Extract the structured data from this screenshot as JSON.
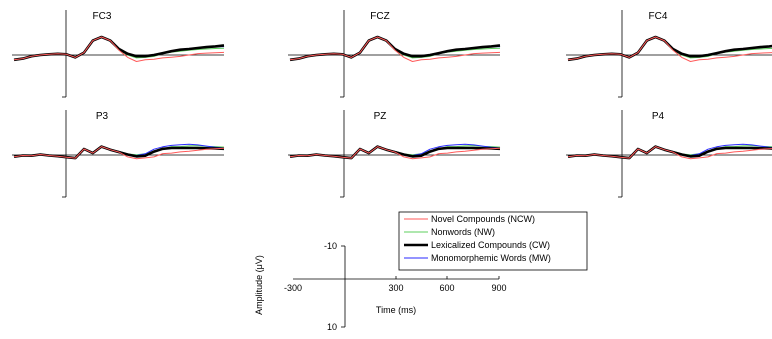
{
  "chart_data": {
    "type": "line",
    "x_unit": "ms",
    "x_range": [
      -300,
      900
    ],
    "y_range": [
      -10,
      10
    ],
    "y_inverted": true,
    "x": [
      -300,
      -250,
      -200,
      -150,
      -100,
      -50,
      0,
      50,
      100,
      150,
      200,
      250,
      300,
      350,
      400,
      450,
      500,
      550,
      600,
      650,
      700,
      750,
      800,
      850,
      900
    ],
    "series_styles": {
      "NCW": {
        "color": "#ff5a5a",
        "width": 1.0
      },
      "NW": {
        "color": "#5ccf5c",
        "width": 1.0
      },
      "CW": {
        "color": "#000000",
        "width": 2.6
      },
      "MW": {
        "color": "#2a2aff",
        "width": 1.0
      }
    },
    "panels": [
      {
        "title": "FC3",
        "series": {
          "NCW": [
            -2,
            -1.5,
            -0.5,
            0,
            0.3,
            0.5,
            0.3,
            -1,
            1,
            6,
            7.5,
            6,
            2,
            -1,
            -2.7,
            -2,
            -1.8,
            -1.2,
            -0.9,
            -0.6,
            0,
            0.6,
            0.8,
            0.9,
            1.1
          ],
          "NW": [
            -2,
            -1.5,
            -0.5,
            0,
            0.3,
            0.5,
            0.3,
            -1,
            1,
            6,
            7.5,
            6,
            2,
            0,
            -1.2,
            -1.0,
            -0.6,
            0.6,
            1.2,
            1.6,
            2.0,
            2.3,
            2.5,
            2.7,
            2.8
          ],
          "CW": [
            -2,
            -1.5,
            -0.5,
            0,
            0.3,
            0.5,
            0.3,
            -1,
            1,
            6,
            7.5,
            6,
            2.5,
            0.5,
            -0.5,
            -0.5,
            0,
            0.8,
            1.6,
            2.2,
            2.5,
            2.9,
            3.3,
            3.6,
            4.0
          ],
          "MW": [
            -2,
            -1.5,
            -0.5,
            0,
            0.3,
            0.5,
            0.3,
            -1,
            1,
            6,
            7.5,
            6,
            2.3,
            0.3,
            -0.7,
            -0.6,
            -0.1,
            0.7,
            1.8,
            2.4,
            2.7,
            3.0,
            3.2,
            3.4,
            3.5
          ]
        }
      },
      {
        "title": "FCZ",
        "series": {
          "NCW": [
            -2,
            -1.5,
            -0.5,
            0,
            0.3,
            0.5,
            0.3,
            -1,
            1,
            6,
            7.5,
            6,
            2,
            -1,
            -2.7,
            -2,
            -1.8,
            -1.2,
            -0.9,
            -0.6,
            0,
            0.6,
            0.8,
            0.9,
            1.1
          ],
          "NW": [
            -2,
            -1.5,
            -0.5,
            0,
            0.3,
            0.5,
            0.3,
            -1,
            1,
            6,
            7.5,
            6,
            2,
            0,
            -1.2,
            -1.0,
            -0.6,
            0.6,
            1.2,
            1.6,
            2.0,
            2.3,
            2.5,
            2.7,
            2.8
          ],
          "CW": [
            -2,
            -1.5,
            -0.5,
            0,
            0.3,
            0.5,
            0.3,
            -1,
            1,
            6,
            7.5,
            6,
            2.5,
            0.5,
            -0.5,
            -0.5,
            0,
            0.8,
            1.6,
            2.2,
            2.5,
            2.9,
            3.3,
            3.6,
            4.0
          ],
          "MW": [
            -2,
            -1.5,
            -0.5,
            0,
            0.3,
            0.5,
            0.3,
            -1,
            1,
            6,
            7.5,
            6,
            2.3,
            0.3,
            -0.7,
            -0.6,
            -0.1,
            0.7,
            1.8,
            2.4,
            2.7,
            3.0,
            3.2,
            3.4,
            3.5
          ]
        }
      },
      {
        "title": "FC4",
        "series": {
          "NCW": [
            -2,
            -1.5,
            -0.5,
            0,
            0.3,
            0.5,
            0.3,
            -1,
            1,
            6,
            7.5,
            6,
            2,
            -1,
            -2.7,
            -2,
            -1.8,
            -1.2,
            -0.9,
            -0.6,
            0,
            0.6,
            0.8,
            0.9,
            1.1
          ],
          "NW": [
            -2,
            -1.5,
            -0.5,
            0,
            0.3,
            0.5,
            0.3,
            -1,
            1,
            6,
            7.5,
            6,
            2,
            0,
            -1.2,
            -1.0,
            -0.6,
            0.6,
            1.2,
            1.6,
            2.0,
            2.3,
            2.5,
            2.7,
            2.8
          ],
          "CW": [
            -2,
            -1.5,
            -0.5,
            0,
            0.3,
            0.5,
            0.3,
            -1,
            1,
            6,
            7.5,
            6,
            2.5,
            0.5,
            -0.5,
            -0.5,
            0,
            0.8,
            1.6,
            2.2,
            2.5,
            2.9,
            3.3,
            3.6,
            4.0
          ],
          "MW": [
            -2,
            -1.5,
            -0.5,
            0,
            0.3,
            0.5,
            0.3,
            -1,
            1,
            6,
            7.5,
            6,
            2.3,
            0.3,
            -0.7,
            -0.6,
            -0.1,
            0.7,
            1.8,
            2.4,
            2.7,
            3.0,
            3.2,
            3.4,
            3.5
          ]
        }
      },
      {
        "title": "P3",
        "series": {
          "NCW": [
            -0.7,
            -0.2,
            -0.3,
            0.2,
            -0.2,
            -0.5,
            -0.9,
            -1.3,
            2.5,
            0.8,
            3.5,
            2.2,
            1.2,
            -0.8,
            -1.6,
            -1.2,
            -0.8,
            0.6,
            0.8,
            1.3,
            1.6,
            2.0,
            2.4,
            2.6,
            2.8
          ],
          "NW": [
            -0.7,
            -0.2,
            -0.3,
            0.2,
            -0.2,
            -0.5,
            -0.9,
            -1.3,
            2.5,
            0.8,
            3.5,
            2.2,
            1.5,
            0.4,
            0.1,
            0.5,
            1.6,
            2.6,
            3.5,
            3.5,
            3.8,
            3.9,
            3.6,
            3.5,
            3.3
          ],
          "CW": [
            -0.7,
            -0.2,
            -0.3,
            0.2,
            -0.2,
            -0.5,
            -0.9,
            -1.3,
            2.5,
            0.8,
            3.5,
            2.2,
            1.2,
            0.2,
            -0.6,
            -0.3,
            1.4,
            2.6,
            2.9,
            2.9,
            2.9,
            2.9,
            2.8,
            2.7,
            2.6
          ],
          "MW": [
            -0.7,
            -0.2,
            -0.3,
            0.2,
            -0.2,
            -0.5,
            -0.9,
            -1.3,
            2.5,
            0.8,
            3.5,
            2.2,
            1.5,
            0.3,
            -0.2,
            0.5,
            2.4,
            3.4,
            4.0,
            4.3,
            4.5,
            4.2,
            3.7,
            3.2,
            2.9
          ]
        }
      },
      {
        "title": "PZ",
        "series": {
          "NCW": [
            -0.7,
            -0.2,
            -0.3,
            0.2,
            -0.2,
            -0.5,
            -0.9,
            -1.3,
            2.5,
            0.8,
            3.5,
            2.2,
            1.2,
            -0.8,
            -1.6,
            -1.2,
            -0.8,
            0.6,
            0.8,
            1.3,
            1.6,
            2.0,
            2.4,
            2.6,
            2.8
          ],
          "NW": [
            -0.7,
            -0.2,
            -0.3,
            0.2,
            -0.2,
            -0.5,
            -0.9,
            -1.3,
            2.5,
            0.8,
            3.5,
            2.2,
            1.5,
            0.4,
            0.1,
            0.5,
            1.6,
            2.6,
            3.5,
            3.5,
            3.8,
            3.9,
            3.6,
            3.5,
            3.3
          ],
          "CW": [
            -0.7,
            -0.2,
            -0.3,
            0.2,
            -0.2,
            -0.5,
            -0.9,
            -1.3,
            2.5,
            0.8,
            3.5,
            2.2,
            1.2,
            0.2,
            -0.6,
            -0.3,
            1.4,
            2.6,
            2.9,
            2.9,
            2.9,
            2.9,
            2.8,
            2.7,
            2.6
          ],
          "MW": [
            -0.7,
            -0.2,
            -0.3,
            0.2,
            -0.2,
            -0.5,
            -0.9,
            -1.3,
            2.5,
            0.8,
            3.5,
            2.2,
            1.5,
            0.3,
            -0.2,
            0.5,
            2.4,
            3.4,
            4.0,
            4.3,
            4.5,
            4.2,
            3.7,
            3.2,
            2.9
          ]
        }
      },
      {
        "title": "P4",
        "series": {
          "NCW": [
            -0.7,
            -0.2,
            -0.3,
            0.2,
            -0.2,
            -0.5,
            -0.9,
            -1.3,
            2.5,
            0.8,
            3.5,
            2.2,
            1.2,
            -0.8,
            -1.6,
            -1.2,
            -0.8,
            0.6,
            0.8,
            1.3,
            1.6,
            2.0,
            2.4,
            2.6,
            2.8
          ],
          "NW": [
            -0.7,
            -0.2,
            -0.3,
            0.2,
            -0.2,
            -0.5,
            -0.9,
            -1.3,
            2.5,
            0.8,
            3.5,
            2.2,
            1.5,
            0.4,
            0.1,
            0.5,
            1.6,
            2.6,
            3.5,
            3.5,
            3.8,
            3.9,
            3.6,
            3.5,
            3.3
          ],
          "CW": [
            -0.7,
            -0.2,
            -0.3,
            0.2,
            -0.2,
            -0.5,
            -0.9,
            -1.3,
            2.5,
            0.8,
            3.5,
            2.2,
            1.2,
            0.2,
            -0.6,
            -0.3,
            1.4,
            2.6,
            2.9,
            2.9,
            2.9,
            2.9,
            2.8,
            2.7,
            2.6
          ],
          "MW": [
            -0.7,
            -0.2,
            -0.3,
            0.2,
            -0.2,
            -0.5,
            -0.9,
            -1.3,
            2.5,
            0.8,
            3.5,
            2.2,
            1.5,
            0.3,
            -0.2,
            0.5,
            2.4,
            3.4,
            4.0,
            4.3,
            4.5,
            4.2,
            3.7,
            3.2,
            2.9
          ]
        }
      }
    ],
    "legend": [
      {
        "key": "NCW",
        "label": "Novel Compounds (NCW)"
      },
      {
        "key": "NW",
        "label": "Nonwords (NW)"
      },
      {
        "key": "CW",
        "label": "Lexicalized Compounds (CW)"
      },
      {
        "key": "MW",
        "label": "Monomorphemic Words (MW)"
      }
    ],
    "scale_axes": {
      "xlabel": "Time (ms)",
      "ylabel": "Amplitude (μV)",
      "x_ticks": [
        "-300",
        "300",
        "600",
        "900"
      ],
      "y_ticks": [
        "-10",
        "10"
      ]
    }
  }
}
